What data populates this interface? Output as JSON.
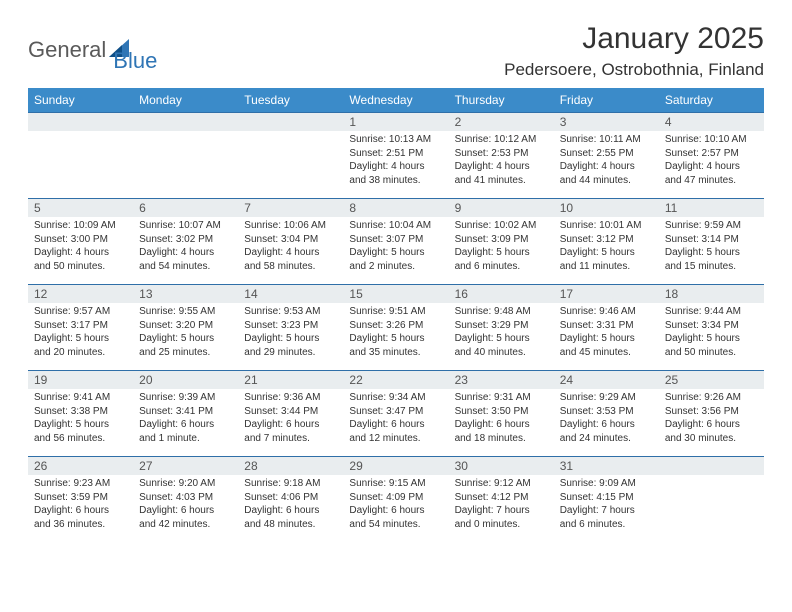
{
  "logo": {
    "text1": "General",
    "text2": "Blue"
  },
  "title": "January 2025",
  "location": "Pedersoere, Ostrobothnia, Finland",
  "colors": {
    "header_bg": "#3b8bc9",
    "header_text": "#ffffff",
    "daynum_bg": "#e9edef",
    "daynum_text": "#555555",
    "divider": "#2f6fa8",
    "body_text": "#333333",
    "logo_gray": "#5a5a5a",
    "logo_blue": "#2f75b5"
  },
  "weekdays": [
    "Sunday",
    "Monday",
    "Tuesday",
    "Wednesday",
    "Thursday",
    "Friday",
    "Saturday"
  ],
  "weeks": [
    [
      {
        "n": "",
        "l1": "",
        "l2": "",
        "l3": "",
        "l4": ""
      },
      {
        "n": "",
        "l1": "",
        "l2": "",
        "l3": "",
        "l4": ""
      },
      {
        "n": "",
        "l1": "",
        "l2": "",
        "l3": "",
        "l4": ""
      },
      {
        "n": "1",
        "l1": "Sunrise: 10:13 AM",
        "l2": "Sunset: 2:51 PM",
        "l3": "Daylight: 4 hours",
        "l4": "and 38 minutes."
      },
      {
        "n": "2",
        "l1": "Sunrise: 10:12 AM",
        "l2": "Sunset: 2:53 PM",
        "l3": "Daylight: 4 hours",
        "l4": "and 41 minutes."
      },
      {
        "n": "3",
        "l1": "Sunrise: 10:11 AM",
        "l2": "Sunset: 2:55 PM",
        "l3": "Daylight: 4 hours",
        "l4": "and 44 minutes."
      },
      {
        "n": "4",
        "l1": "Sunrise: 10:10 AM",
        "l2": "Sunset: 2:57 PM",
        "l3": "Daylight: 4 hours",
        "l4": "and 47 minutes."
      }
    ],
    [
      {
        "n": "5",
        "l1": "Sunrise: 10:09 AM",
        "l2": "Sunset: 3:00 PM",
        "l3": "Daylight: 4 hours",
        "l4": "and 50 minutes."
      },
      {
        "n": "6",
        "l1": "Sunrise: 10:07 AM",
        "l2": "Sunset: 3:02 PM",
        "l3": "Daylight: 4 hours",
        "l4": "and 54 minutes."
      },
      {
        "n": "7",
        "l1": "Sunrise: 10:06 AM",
        "l2": "Sunset: 3:04 PM",
        "l3": "Daylight: 4 hours",
        "l4": "and 58 minutes."
      },
      {
        "n": "8",
        "l1": "Sunrise: 10:04 AM",
        "l2": "Sunset: 3:07 PM",
        "l3": "Daylight: 5 hours",
        "l4": "and 2 minutes."
      },
      {
        "n": "9",
        "l1": "Sunrise: 10:02 AM",
        "l2": "Sunset: 3:09 PM",
        "l3": "Daylight: 5 hours",
        "l4": "and 6 minutes."
      },
      {
        "n": "10",
        "l1": "Sunrise: 10:01 AM",
        "l2": "Sunset: 3:12 PM",
        "l3": "Daylight: 5 hours",
        "l4": "and 11 minutes."
      },
      {
        "n": "11",
        "l1": "Sunrise: 9:59 AM",
        "l2": "Sunset: 3:14 PM",
        "l3": "Daylight: 5 hours",
        "l4": "and 15 minutes."
      }
    ],
    [
      {
        "n": "12",
        "l1": "Sunrise: 9:57 AM",
        "l2": "Sunset: 3:17 PM",
        "l3": "Daylight: 5 hours",
        "l4": "and 20 minutes."
      },
      {
        "n": "13",
        "l1": "Sunrise: 9:55 AM",
        "l2": "Sunset: 3:20 PM",
        "l3": "Daylight: 5 hours",
        "l4": "and 25 minutes."
      },
      {
        "n": "14",
        "l1": "Sunrise: 9:53 AM",
        "l2": "Sunset: 3:23 PM",
        "l3": "Daylight: 5 hours",
        "l4": "and 29 minutes."
      },
      {
        "n": "15",
        "l1": "Sunrise: 9:51 AM",
        "l2": "Sunset: 3:26 PM",
        "l3": "Daylight: 5 hours",
        "l4": "and 35 minutes."
      },
      {
        "n": "16",
        "l1": "Sunrise: 9:48 AM",
        "l2": "Sunset: 3:29 PM",
        "l3": "Daylight: 5 hours",
        "l4": "and 40 minutes."
      },
      {
        "n": "17",
        "l1": "Sunrise: 9:46 AM",
        "l2": "Sunset: 3:31 PM",
        "l3": "Daylight: 5 hours",
        "l4": "and 45 minutes."
      },
      {
        "n": "18",
        "l1": "Sunrise: 9:44 AM",
        "l2": "Sunset: 3:34 PM",
        "l3": "Daylight: 5 hours",
        "l4": "and 50 minutes."
      }
    ],
    [
      {
        "n": "19",
        "l1": "Sunrise: 9:41 AM",
        "l2": "Sunset: 3:38 PM",
        "l3": "Daylight: 5 hours",
        "l4": "and 56 minutes."
      },
      {
        "n": "20",
        "l1": "Sunrise: 9:39 AM",
        "l2": "Sunset: 3:41 PM",
        "l3": "Daylight: 6 hours",
        "l4": "and 1 minute."
      },
      {
        "n": "21",
        "l1": "Sunrise: 9:36 AM",
        "l2": "Sunset: 3:44 PM",
        "l3": "Daylight: 6 hours",
        "l4": "and 7 minutes."
      },
      {
        "n": "22",
        "l1": "Sunrise: 9:34 AM",
        "l2": "Sunset: 3:47 PM",
        "l3": "Daylight: 6 hours",
        "l4": "and 12 minutes."
      },
      {
        "n": "23",
        "l1": "Sunrise: 9:31 AM",
        "l2": "Sunset: 3:50 PM",
        "l3": "Daylight: 6 hours",
        "l4": "and 18 minutes."
      },
      {
        "n": "24",
        "l1": "Sunrise: 9:29 AM",
        "l2": "Sunset: 3:53 PM",
        "l3": "Daylight: 6 hours",
        "l4": "and 24 minutes."
      },
      {
        "n": "25",
        "l1": "Sunrise: 9:26 AM",
        "l2": "Sunset: 3:56 PM",
        "l3": "Daylight: 6 hours",
        "l4": "and 30 minutes."
      }
    ],
    [
      {
        "n": "26",
        "l1": "Sunrise: 9:23 AM",
        "l2": "Sunset: 3:59 PM",
        "l3": "Daylight: 6 hours",
        "l4": "and 36 minutes."
      },
      {
        "n": "27",
        "l1": "Sunrise: 9:20 AM",
        "l2": "Sunset: 4:03 PM",
        "l3": "Daylight: 6 hours",
        "l4": "and 42 minutes."
      },
      {
        "n": "28",
        "l1": "Sunrise: 9:18 AM",
        "l2": "Sunset: 4:06 PM",
        "l3": "Daylight: 6 hours",
        "l4": "and 48 minutes."
      },
      {
        "n": "29",
        "l1": "Sunrise: 9:15 AM",
        "l2": "Sunset: 4:09 PM",
        "l3": "Daylight: 6 hours",
        "l4": "and 54 minutes."
      },
      {
        "n": "30",
        "l1": "Sunrise: 9:12 AM",
        "l2": "Sunset: 4:12 PM",
        "l3": "Daylight: 7 hours",
        "l4": "and 0 minutes."
      },
      {
        "n": "31",
        "l1": "Sunrise: 9:09 AM",
        "l2": "Sunset: 4:15 PM",
        "l3": "Daylight: 7 hours",
        "l4": "and 6 minutes."
      },
      {
        "n": "",
        "l1": "",
        "l2": "",
        "l3": "",
        "l4": ""
      }
    ]
  ]
}
